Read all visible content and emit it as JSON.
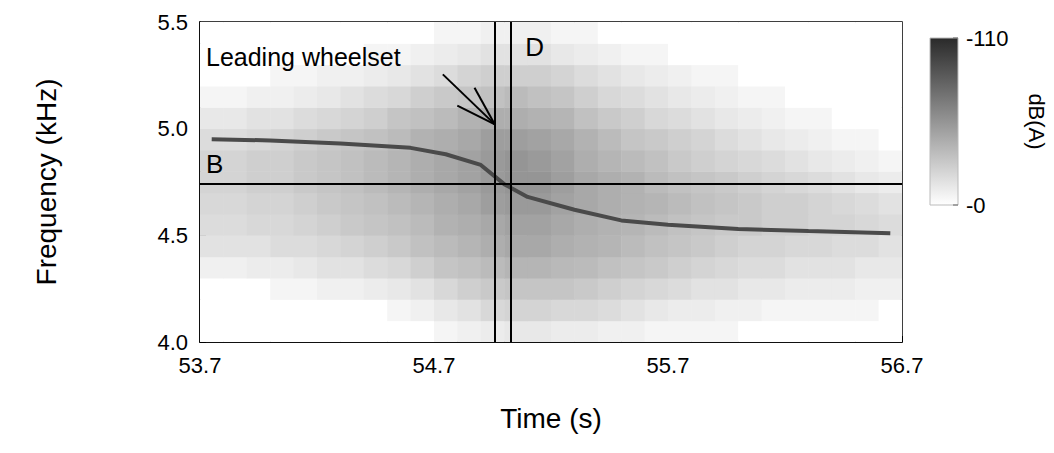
{
  "chart_data": {
    "type": "spectrogram",
    "x_label": "Time (s)",
    "y_label": "Frequency (kHz)",
    "xlim": [
      53.7,
      56.7
    ],
    "xticks": [
      53.7,
      54.7,
      55.7,
      56.7
    ],
    "ylim": [
      4.0,
      5.5
    ],
    "yticks": [
      {
        "value": 4.0,
        "label": "4.0"
      },
      {
        "value": 4.5,
        "label": "4.5"
      },
      {
        "value": 5.0,
        "label": "5.0"
      },
      {
        "value": 5.5,
        "label": "5.5"
      }
    ],
    "cells": {
      "time_edges": [
        53.7,
        53.8,
        53.9,
        54.0,
        54.1,
        54.2,
        54.3,
        54.4,
        54.5,
        54.6,
        54.7,
        54.8,
        54.9,
        55.0,
        55.1,
        55.2,
        55.3,
        55.4,
        55.5,
        55.6,
        55.7,
        55.8,
        55.9,
        56.0,
        56.1,
        56.2,
        56.3,
        56.4,
        56.5,
        56.6,
        56.7
      ],
      "freq_edges": [
        4.0,
        4.1,
        4.2,
        4.3,
        4.4,
        4.5,
        4.6,
        4.7,
        4.8,
        4.9,
        5.0,
        5.1,
        5.2,
        5.3,
        5.4,
        5.5
      ],
      "levels": [
        [
          0,
          0,
          0,
          0,
          0,
          0,
          0,
          0,
          0,
          0,
          -5,
          -8,
          -10,
          -12,
          -12,
          -10,
          -10,
          -8,
          -8,
          -5,
          -5,
          -5,
          -5,
          0,
          0,
          0,
          0,
          0,
          0,
          0
        ],
        [
          0,
          0,
          0,
          0,
          0,
          0,
          0,
          0,
          -5,
          -8,
          -12,
          -15,
          -20,
          -22,
          -22,
          -20,
          -20,
          -18,
          -15,
          -12,
          -10,
          -10,
          -8,
          -8,
          -5,
          -5,
          -5,
          -5,
          -5,
          0
        ],
        [
          0,
          0,
          0,
          -5,
          -5,
          -8,
          -8,
          -10,
          -12,
          -15,
          -20,
          -25,
          -28,
          -30,
          -30,
          -30,
          -28,
          -25,
          -22,
          -20,
          -18,
          -15,
          -15,
          -12,
          -12,
          -10,
          -10,
          -10,
          -8,
          -8
        ],
        [
          -8,
          -8,
          -10,
          -10,
          -12,
          -15,
          -15,
          -18,
          -20,
          -25,
          -30,
          -32,
          -35,
          -38,
          -38,
          -36,
          -35,
          -32,
          -30,
          -28,
          -25,
          -22,
          -20,
          -18,
          -18,
          -15,
          -15,
          -15,
          -12,
          -12
        ],
        [
          -15,
          -15,
          -15,
          -18,
          -18,
          -20,
          -22,
          -25,
          -28,
          -32,
          -35,
          -38,
          -42,
          -45,
          -45,
          -42,
          -40,
          -38,
          -35,
          -32,
          -30,
          -28,
          -25,
          -22,
          -22,
          -20,
          -20,
          -18,
          -18,
          -15
        ],
        [
          -18,
          -18,
          -20,
          -20,
          -22,
          -25,
          -28,
          -30,
          -32,
          -35,
          -40,
          -42,
          -45,
          -48,
          -48,
          -45,
          -42,
          -40,
          -38,
          -35,
          -32,
          -30,
          -28,
          -28,
          -25,
          -25,
          -22,
          -22,
          -20,
          -18
        ],
        [
          -20,
          -20,
          -22,
          -22,
          -25,
          -28,
          -30,
          -32,
          -35,
          -38,
          -42,
          -45,
          -50,
          -52,
          -52,
          -48,
          -45,
          -42,
          -40,
          -38,
          -35,
          -32,
          -30,
          -28,
          -25,
          -25,
          -22,
          -20,
          -18,
          -15
        ],
        [
          -22,
          -22,
          -25,
          -25,
          -28,
          -30,
          -32,
          -35,
          -38,
          -42,
          -45,
          -48,
          -52,
          -55,
          -55,
          -50,
          -45,
          -42,
          -40,
          -35,
          -32,
          -30,
          -28,
          -25,
          -22,
          -20,
          -18,
          -15,
          -12,
          -10
        ],
        [
          -22,
          -22,
          -25,
          -25,
          -28,
          -30,
          -32,
          -35,
          -38,
          -42,
          -45,
          -48,
          -52,
          -55,
          -52,
          -48,
          -42,
          -38,
          -35,
          -32,
          -28,
          -25,
          -22,
          -20,
          -18,
          -15,
          -12,
          -10,
          -8,
          -5
        ],
        [
          -18,
          -18,
          -20,
          -22,
          -25,
          -28,
          -30,
          -32,
          -35,
          -40,
          -42,
          -45,
          -50,
          -50,
          -48,
          -45,
          -40,
          -35,
          -30,
          -28,
          -25,
          -22,
          -18,
          -15,
          -12,
          -10,
          -8,
          -5,
          -5,
          0
        ],
        [
          -12,
          -12,
          -15,
          -15,
          -18,
          -20,
          -22,
          -25,
          -30,
          -32,
          -35,
          -40,
          -42,
          -42,
          -40,
          -38,
          -32,
          -28,
          -25,
          -20,
          -18,
          -15,
          -12,
          -10,
          -8,
          -5,
          -5,
          0,
          0,
          0
        ],
        [
          -5,
          -5,
          -8,
          -8,
          -10,
          -12,
          -15,
          -18,
          -20,
          -25,
          -28,
          -30,
          -32,
          -35,
          -32,
          -30,
          -25,
          -20,
          -18,
          -15,
          -12,
          -10,
          -8,
          -5,
          -5,
          0,
          0,
          0,
          0,
          0
        ],
        [
          0,
          0,
          0,
          -5,
          -5,
          -8,
          -8,
          -10,
          -12,
          -15,
          -18,
          -22,
          -25,
          -25,
          -25,
          -22,
          -18,
          -15,
          -12,
          -10,
          -8,
          -5,
          -5,
          0,
          0,
          0,
          0,
          0,
          0,
          0
        ],
        [
          0,
          0,
          0,
          0,
          0,
          0,
          0,
          -5,
          -5,
          -8,
          -10,
          -12,
          -15,
          -15,
          -15,
          -12,
          -10,
          -8,
          -5,
          -5,
          0,
          0,
          0,
          0,
          0,
          0,
          0,
          0,
          0,
          0
        ],
        [
          0,
          0,
          0,
          0,
          0,
          0,
          0,
          0,
          0,
          0,
          -5,
          -5,
          -8,
          -8,
          -8,
          -5,
          -5,
          0,
          0,
          0,
          0,
          0,
          0,
          0,
          0,
          0,
          0,
          0,
          0,
          0
        ]
      ]
    },
    "tone": {
      "x": [
        53.75,
        54.0,
        54.3,
        54.6,
        54.75,
        54.9,
        55.0,
        55.1,
        55.3,
        55.5,
        55.7,
        56.0,
        56.3,
        56.65
      ],
      "y": [
        4.95,
        4.945,
        4.93,
        4.91,
        4.88,
        4.83,
        4.74,
        4.68,
        4.62,
        4.57,
        4.55,
        4.53,
        4.52,
        4.51
      ],
      "color": "#4a4a4a"
    },
    "vlines": [
      {
        "value": 54.96
      },
      {
        "value": 55.03,
        "label": "D"
      }
    ],
    "hlines": [
      {
        "value": 4.74,
        "label": "B"
      }
    ],
    "annotations": [
      {
        "text": "Leading wheelset",
        "x": 54.96,
        "y": 5.02
      }
    ],
    "colorbar": {
      "label": "dB(A)",
      "range": [
        -110,
        0
      ],
      "ticks": [
        -110,
        {
          "value": 0,
          "label": "-0"
        }
      ],
      "colors": [
        "#2a2a2a",
        "#ffffff"
      ]
    }
  }
}
